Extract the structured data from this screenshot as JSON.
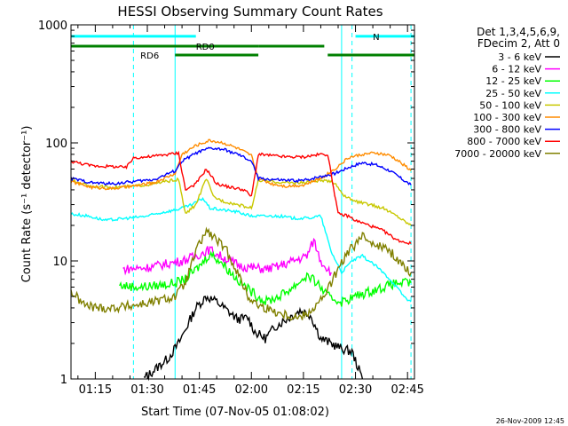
{
  "chart_data": {
    "type": "line",
    "title": "HESSI Observing Summary Count Rates",
    "xlabel": "Start Time (07-Nov-05 01:08:02)",
    "ylabel": "Count Rate (s⁻¹ detector⁻¹)",
    "yscale": "log",
    "ylim": [
      1,
      1000
    ],
    "xlim_minutes": [
      68,
      167
    ],
    "x_tick_labels": [
      "01:15",
      "01:30",
      "01:45",
      "02:00",
      "02:15",
      "02:30",
      "02:45"
    ],
    "x_tick_minutes": [
      75,
      90,
      105,
      120,
      135,
      150,
      165
    ],
    "y_tick_labels": [
      "1",
      "10",
      "100",
      "1000"
    ],
    "y_tick_values": [
      1,
      10,
      100,
      1000
    ],
    "legend_header": [
      "Det 1,3,4,5,6,9,",
      "FDecim 2, Att 0"
    ],
    "legend_position": "right",
    "footer_date": "26-Nov-2009 12:45",
    "flags": [
      {
        "name": "N",
        "color": "#00ffff",
        "segments": [
          [
            68,
            104
          ],
          [
            150,
            167
          ]
        ],
        "level": 800
      },
      {
        "name": "RD0",
        "color": "#008000",
        "segments": [
          [
            68,
            122
          ],
          [
            122,
            141
          ]
        ],
        "level": 660
      },
      {
        "name": "RD6",
        "color": "#008000",
        "segments": [
          [
            98,
            122
          ],
          [
            142,
            167
          ]
        ],
        "level": 555
      }
    ],
    "vlines": [
      {
        "minute": 68,
        "style": "solid",
        "color": "#00ffff"
      },
      {
        "minute": 86,
        "style": "dashed",
        "color": "#00ffff"
      },
      {
        "minute": 98,
        "style": "solid",
        "color": "#00ffff"
      },
      {
        "minute": 146,
        "style": "solid",
        "color": "#00ffff"
      },
      {
        "minute": 149,
        "style": "dashed",
        "color": "#00ffff"
      },
      {
        "minute": 166,
        "style": "dashed",
        "color": "#00ffff"
      }
    ],
    "series": [
      {
        "name": "3 - 6 keV",
        "color": "#000000",
        "points": [
          [
            89,
            1.0
          ],
          [
            96,
            1.5
          ],
          [
            99,
            2.0
          ],
          [
            104,
            4.0
          ],
          [
            107,
            5.0
          ],
          [
            110,
            4.5
          ],
          [
            113,
            3.8
          ],
          [
            116,
            3.2
          ],
          [
            119,
            3.3
          ],
          [
            121,
            2.5
          ],
          [
            124,
            2.2
          ],
          [
            127,
            2.8
          ],
          [
            130,
            3.2
          ],
          [
            134,
            3.8
          ],
          [
            137,
            3.5
          ],
          [
            140,
            2.2
          ],
          [
            143,
            2.0
          ],
          [
            146,
            1.8
          ],
          [
            149,
            1.7
          ],
          [
            152,
            1.0
          ]
        ]
      },
      {
        "name": "6 - 12 keV",
        "color": "#ff00ff",
        "points": [
          [
            83,
            8.5
          ],
          [
            90,
            8.8
          ],
          [
            96,
            9.5
          ],
          [
            100,
            10.0
          ],
          [
            104,
            11.0
          ],
          [
            108,
            12.5
          ],
          [
            111,
            11.0
          ],
          [
            114,
            10.0
          ],
          [
            117,
            9.0
          ],
          [
            120,
            8.8
          ],
          [
            124,
            8.5
          ],
          [
            128,
            9.0
          ],
          [
            132,
            10.0
          ],
          [
            136,
            11.0
          ],
          [
            138,
            15.0
          ],
          [
            140,
            10.0
          ],
          [
            143,
            8.0
          ]
        ]
      },
      {
        "name": "12 - 25 keV",
        "color": "#00ff00",
        "points": [
          [
            82,
            6.2
          ],
          [
            88,
            6.0
          ],
          [
            93,
            6.2
          ],
          [
            98,
            6.5
          ],
          [
            101,
            7.0
          ],
          [
            105,
            9.0
          ],
          [
            108,
            11.5
          ],
          [
            111,
            10.0
          ],
          [
            114,
            8.0
          ],
          [
            117,
            6.5
          ],
          [
            120,
            5.5
          ],
          [
            124,
            4.5
          ],
          [
            128,
            5.0
          ],
          [
            132,
            6.0
          ],
          [
            136,
            7.5
          ],
          [
            139,
            6.5
          ],
          [
            142,
            5.0
          ],
          [
            146,
            4.5
          ],
          [
            150,
            5.0
          ],
          [
            154,
            5.5
          ],
          [
            158,
            6.0
          ],
          [
            162,
            6.5
          ],
          [
            166,
            6.5
          ]
        ]
      },
      {
        "name": "25 - 50 keV",
        "color": "#00ffff",
        "points": [
          [
            68,
            25
          ],
          [
            73,
            24
          ],
          [
            78,
            22
          ],
          [
            84,
            23
          ],
          [
            90,
            24
          ],
          [
            95,
            26
          ],
          [
            98,
            27
          ],
          [
            100,
            28
          ],
          [
            103,
            30
          ],
          [
            106,
            34
          ],
          [
            108,
            28
          ],
          [
            112,
            27
          ],
          [
            116,
            26
          ],
          [
            120,
            24
          ],
          [
            124,
            24
          ],
          [
            128,
            24
          ],
          [
            132,
            23
          ],
          [
            136,
            23
          ],
          [
            140,
            24
          ],
          [
            143,
            12
          ],
          [
            146,
            8
          ],
          [
            149,
            10
          ],
          [
            152,
            11
          ],
          [
            156,
            9
          ],
          [
            160,
            7
          ],
          [
            164,
            5
          ],
          [
            166,
            4.5
          ]
        ]
      },
      {
        "name": "50 - 100 keV",
        "color": "#c8c800",
        "points": [
          [
            68,
            48
          ],
          [
            74,
            43
          ],
          [
            80,
            42
          ],
          [
            86,
            43
          ],
          [
            92,
            45
          ],
          [
            97,
            48
          ],
          [
            99,
            49
          ],
          [
            101,
            25
          ],
          [
            104,
            30
          ],
          [
            107,
            50
          ],
          [
            109,
            35
          ],
          [
            112,
            32
          ],
          [
            116,
            30
          ],
          [
            120,
            28
          ],
          [
            122,
            48
          ],
          [
            126,
            47
          ],
          [
            130,
            46
          ],
          [
            135,
            46
          ],
          [
            140,
            48
          ],
          [
            144,
            46
          ],
          [
            147,
            35
          ],
          [
            150,
            32
          ],
          [
            154,
            30
          ],
          [
            158,
            28
          ],
          [
            162,
            24
          ],
          [
            166,
            20
          ]
        ]
      },
      {
        "name": "100 - 300 keV",
        "color": "#ff8c00",
        "points": [
          [
            68,
            47
          ],
          [
            74,
            42
          ],
          [
            80,
            41
          ],
          [
            86,
            43
          ],
          [
            92,
            46
          ],
          [
            98,
            55
          ],
          [
            100,
            80
          ],
          [
            104,
            95
          ],
          [
            108,
            105
          ],
          [
            112,
            100
          ],
          [
            116,
            90
          ],
          [
            120,
            78
          ],
          [
            122,
            50
          ],
          [
            126,
            45
          ],
          [
            130,
            43
          ],
          [
            135,
            44
          ],
          [
            140,
            50
          ],
          [
            144,
            60
          ],
          [
            148,
            75
          ],
          [
            152,
            80
          ],
          [
            156,
            82
          ],
          [
            160,
            78
          ],
          [
            164,
            65
          ],
          [
            166,
            58
          ]
        ]
      },
      {
        "name": "300 - 800 keV",
        "color": "#0000ff",
        "points": [
          [
            68,
            50
          ],
          [
            74,
            46
          ],
          [
            80,
            45
          ],
          [
            86,
            47
          ],
          [
            92,
            49
          ],
          [
            98,
            58
          ],
          [
            100,
            70
          ],
          [
            104,
            82
          ],
          [
            108,
            90
          ],
          [
            112,
            88
          ],
          [
            116,
            80
          ],
          [
            120,
            70
          ],
          [
            122,
            50
          ],
          [
            126,
            49
          ],
          [
            130,
            48
          ],
          [
            135,
            48
          ],
          [
            140,
            52
          ],
          [
            144,
            55
          ],
          [
            148,
            62
          ],
          [
            152,
            68
          ],
          [
            156,
            65
          ],
          [
            160,
            58
          ],
          [
            164,
            48
          ],
          [
            166,
            44
          ]
        ]
      },
      {
        "name": "800 - 7000 keV",
        "color": "#ff0000",
        "points": [
          [
            68,
            70
          ],
          [
            74,
            64
          ],
          [
            80,
            63
          ],
          [
            84,
            62
          ],
          [
            86,
            75
          ],
          [
            90,
            76
          ],
          [
            96,
            80
          ],
          [
            99,
            82
          ],
          [
            101,
            40
          ],
          [
            104,
            45
          ],
          [
            107,
            60
          ],
          [
            110,
            45
          ],
          [
            114,
            42
          ],
          [
            118,
            40
          ],
          [
            120,
            35
          ],
          [
            122,
            80
          ],
          [
            126,
            78
          ],
          [
            130,
            76
          ],
          [
            135,
            76
          ],
          [
            140,
            80
          ],
          [
            142,
            80
          ],
          [
            145,
            25
          ],
          [
            148,
            24
          ],
          [
            150,
            22
          ],
          [
            154,
            20
          ],
          [
            158,
            18
          ],
          [
            162,
            15
          ],
          [
            166,
            14
          ]
        ]
      },
      {
        "name": "7000 - 20000 keV",
        "color": "#808000",
        "points": [
          [
            68,
            5.5
          ],
          [
            72,
            4.2
          ],
          [
            76,
            4.0
          ],
          [
            80,
            4.0
          ],
          [
            86,
            4.2
          ],
          [
            92,
            4.5
          ],
          [
            98,
            5.0
          ],
          [
            101,
            6.5
          ],
          [
            104,
            12.0
          ],
          [
            107,
            18.0
          ],
          [
            110,
            15.0
          ],
          [
            113,
            12.0
          ],
          [
            116,
            8.0
          ],
          [
            119,
            5.0
          ],
          [
            122,
            4.2
          ],
          [
            126,
            3.8
          ],
          [
            130,
            3.5
          ],
          [
            134,
            3.3
          ],
          [
            138,
            4.0
          ],
          [
            141,
            5.0
          ],
          [
            144,
            7.5
          ],
          [
            148,
            12.0
          ],
          [
            152,
            16.0
          ],
          [
            156,
            14.0
          ],
          [
            160,
            12.0
          ],
          [
            164,
            9.0
          ],
          [
            166,
            8.0
          ]
        ]
      }
    ]
  }
}
